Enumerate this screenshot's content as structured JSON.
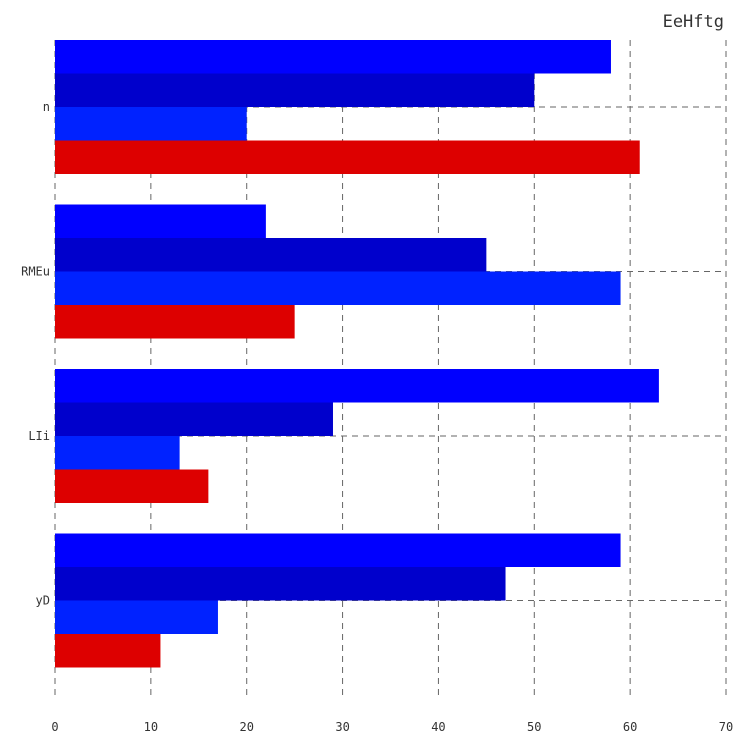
{
  "chart_data": {
    "type": "bar",
    "orientation": "horizontal",
    "title": "EeHftg",
    "xlabel": "",
    "ylabel": "",
    "categories": [
      "n",
      "RMEu",
      "LIi",
      "yD"
    ],
    "series": [
      {
        "color": "#0000ff",
        "values": [
          58,
          22,
          63,
          59
        ]
      },
      {
        "color": "#0000cc",
        "values": [
          50,
          45,
          29,
          47
        ]
      },
      {
        "color": "#0022ff",
        "values": [
          20,
          59,
          13,
          17
        ]
      },
      {
        "color": "#dd0000",
        "values": [
          61,
          25,
          16,
          11
        ]
      }
    ],
    "xlim": [
      0,
      70
    ],
    "xticks": [
      0,
      10,
      20,
      30,
      40,
      50,
      60,
      70
    ],
    "grid": true
  }
}
